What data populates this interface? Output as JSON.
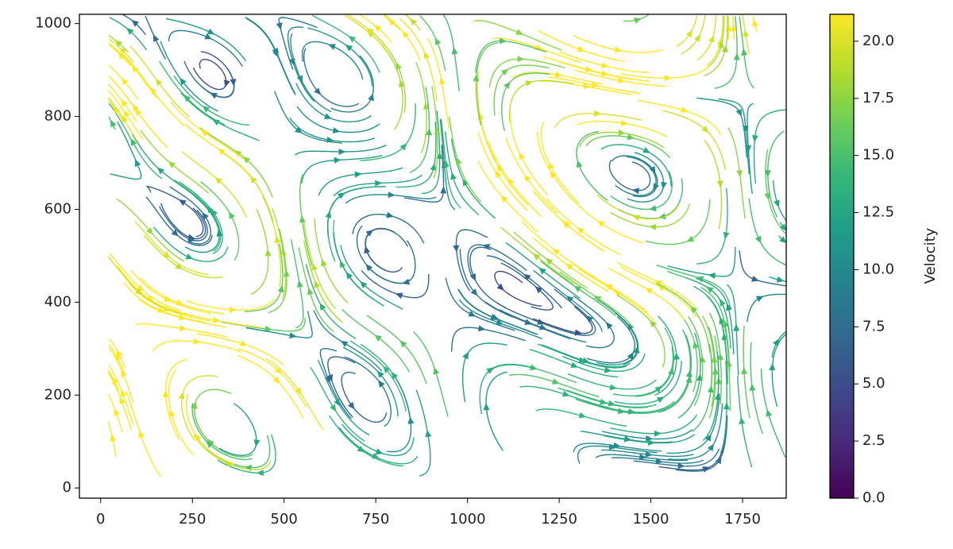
{
  "chart_data": {
    "type": "streamplot",
    "xlim": [
      -58,
      1869
    ],
    "ylim": [
      -22,
      1020
    ],
    "xticks": [
      0,
      250,
      500,
      750,
      1000,
      1250,
      1500,
      1750
    ],
    "yticks": [
      0,
      200,
      400,
      600,
      800,
      1000
    ],
    "colorbar": {
      "label": "Velocity",
      "lim": [
        0,
        21.18
      ],
      "ticks": [
        {
          "value": 0,
          "label": "0.0"
        },
        {
          "value": 2.5,
          "label": "2.5"
        },
        {
          "value": 5,
          "label": "5.0"
        },
        {
          "value": 7.5,
          "label": "7.5"
        },
        {
          "value": 10,
          "label": "10.0"
        },
        {
          "value": 12.5,
          "label": "12.5"
        },
        {
          "value": 15,
          "label": "15.0"
        },
        {
          "value": 17.5,
          "label": "17.5"
        },
        {
          "value": 20,
          "label": "20.0"
        }
      ],
      "colormap": [
        "#440154",
        "#482878",
        "#3e4989",
        "#31688e",
        "#26828e",
        "#1f9e89",
        "#35b779",
        "#6ece58",
        "#b5de2b",
        "#fde725"
      ]
    }
  }
}
